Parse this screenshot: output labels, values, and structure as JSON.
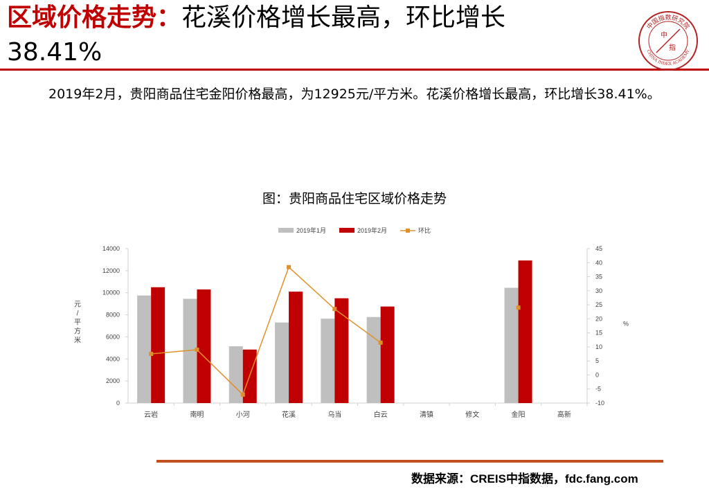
{
  "header": {
    "title_highlight": "区域价格走势：",
    "title_rest": "花溪价格增长最高，环比增长",
    "title_line2": "38.41%"
  },
  "logo": {
    "text_top": "中国指数研究院",
    "text_center_a": "中",
    "text_center_b": "指",
    "text_bottom": "CHINA INDEX ACADEMY"
  },
  "body": {
    "text": "2019年2月，贵阳商品住宅金阳价格最高，为12925元/平方米。花溪价格增长最高，环比增长38.41%。"
  },
  "chart_title": "图：贵阳商品住宅区域价格走势",
  "footer": {
    "source": "数据来源：CREIS中指数据，fdc.fang.com"
  },
  "colors": {
    "accent": "#c00000",
    "series_jan": "#bfbfbf",
    "series_feb": "#c00000",
    "series_mom": "#e0902a"
  },
  "chart_data": {
    "type": "bar",
    "categories": [
      "云岩",
      "南明",
      "小河",
      "花溪",
      "乌当",
      "白云",
      "清镇",
      "修文",
      "金阳",
      "高新"
    ],
    "series": [
      {
        "name": "2019年1月",
        "type": "bar",
        "axis": "left",
        "values": [
          9750,
          9450,
          5150,
          7300,
          7650,
          7800,
          null,
          null,
          10450,
          null
        ]
      },
      {
        "name": "2019年2月",
        "type": "bar",
        "axis": "left",
        "values": [
          10500,
          10300,
          4850,
          10100,
          9500,
          8750,
          null,
          null,
          12925,
          null
        ]
      },
      {
        "name": "环比",
        "type": "line",
        "axis": "right",
        "values": [
          7.5,
          9.0,
          -7.0,
          38.41,
          23.5,
          11.5,
          null,
          null,
          24.0,
          null
        ]
      }
    ],
    "ylabel": "元/平方米",
    "ylim": [
      0,
      14000
    ],
    "yticks": [
      0,
      2000,
      4000,
      6000,
      8000,
      10000,
      12000,
      14000
    ],
    "y2label": "%",
    "y2lim": [
      -10,
      45
    ],
    "y2ticks": [
      -10,
      -5,
      0,
      5,
      10,
      15,
      20,
      25,
      30,
      35,
      40,
      45
    ],
    "legend_position": "top-center",
    "grid": false
  }
}
